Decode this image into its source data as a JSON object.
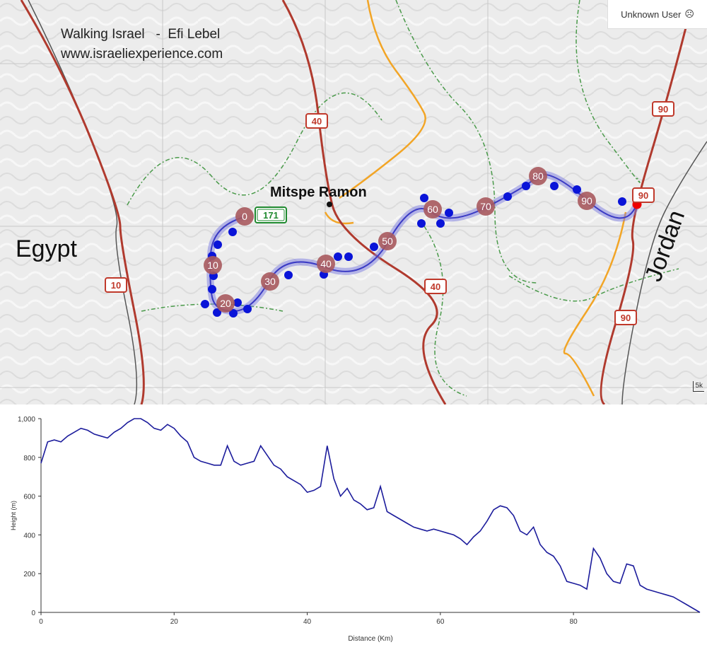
{
  "credit": {
    "line1": "Walking Israel   -  Efi Lebel",
    "line2": "www.israeliexperience.com"
  },
  "user": {
    "label": "Unknown User",
    "icon": "sad-face-icon"
  },
  "labels": {
    "country_west": "Egypt",
    "country_east": "Jordan",
    "town": "Mitspe Ramon"
  },
  "roads": [
    "40",
    "40",
    "90",
    "90",
    "90",
    "10",
    "171"
  ],
  "km_markers": [
    "0",
    "10",
    "20",
    "30",
    "40",
    "50",
    "60",
    "70",
    "80",
    "90"
  ],
  "scale_label": "5k",
  "chart_data": {
    "type": "line",
    "xlabel": "Distance (Km)",
    "ylabel": "Height (m)",
    "xlim": [
      0,
      99
    ],
    "ylim": [
      0,
      1000
    ],
    "xticks": [
      "0",
      "20",
      "40",
      "60",
      "80"
    ],
    "yticks": [
      "0",
      "200",
      "400",
      "600",
      "800",
      "1,000"
    ],
    "grid": false,
    "series": [
      {
        "x": [
          0,
          1,
          2,
          3,
          4,
          5,
          6,
          7,
          8,
          9,
          10,
          11,
          12,
          13,
          14,
          15,
          16,
          17,
          18,
          19,
          20,
          21,
          22,
          23,
          24,
          25,
          26,
          27,
          28,
          29,
          30,
          31,
          32,
          33,
          34,
          35,
          36,
          37,
          38,
          39,
          40,
          41,
          42,
          43,
          44,
          45,
          46,
          47,
          48,
          49,
          50,
          51,
          52,
          53,
          54,
          55,
          56,
          57,
          58,
          59,
          60,
          61,
          62,
          63,
          64,
          65,
          66,
          67,
          68,
          69,
          70,
          71,
          72,
          73,
          74,
          75,
          76,
          77,
          78,
          79,
          80,
          81,
          82,
          83,
          84,
          85,
          86,
          87,
          88,
          89,
          90,
          91,
          92,
          93,
          94,
          95,
          96,
          97,
          98,
          99
        ],
        "y": [
          770,
          880,
          890,
          880,
          910,
          930,
          950,
          940,
          920,
          910,
          900,
          930,
          950,
          980,
          1000,
          1000,
          980,
          950,
          940,
          970,
          950,
          910,
          880,
          800,
          780,
          770,
          760,
          760,
          860,
          780,
          760,
          770,
          780,
          860,
          810,
          760,
          740,
          700,
          680,
          660,
          620,
          630,
          650,
          860,
          690,
          600,
          640,
          580,
          560,
          530,
          540,
          650,
          520,
          500,
          480,
          460,
          440,
          430,
          420,
          430,
          420,
          410,
          400,
          380,
          350,
          390,
          420,
          470,
          530,
          550,
          540,
          500,
          420,
          400,
          440,
          350,
          310,
          290,
          240,
          160,
          150,
          140,
          120,
          330,
          280,
          200,
          160,
          150,
          250,
          240,
          140,
          120,
          110,
          100,
          90,
          80,
          60,
          40,
          20,
          0
        ]
      }
    ]
  }
}
